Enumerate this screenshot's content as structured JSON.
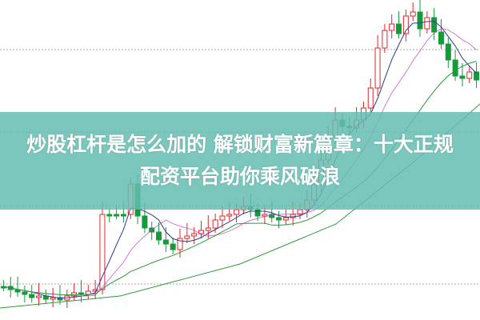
{
  "banner": {
    "line1": "炒股杠杆是怎么加的 解锁财富新篇章：十大正规",
    "line2": "配资平台助你乘风破浪"
  },
  "colors": {
    "banner": "#64bcb2",
    "candle_up": "#e0262b",
    "candle_down": "#159a3a",
    "ma_short": "#2c3e91",
    "ma_mid": "#c040c0",
    "ma_long": "#2e9a3a",
    "grid": "#aaaaaa"
  }
}
